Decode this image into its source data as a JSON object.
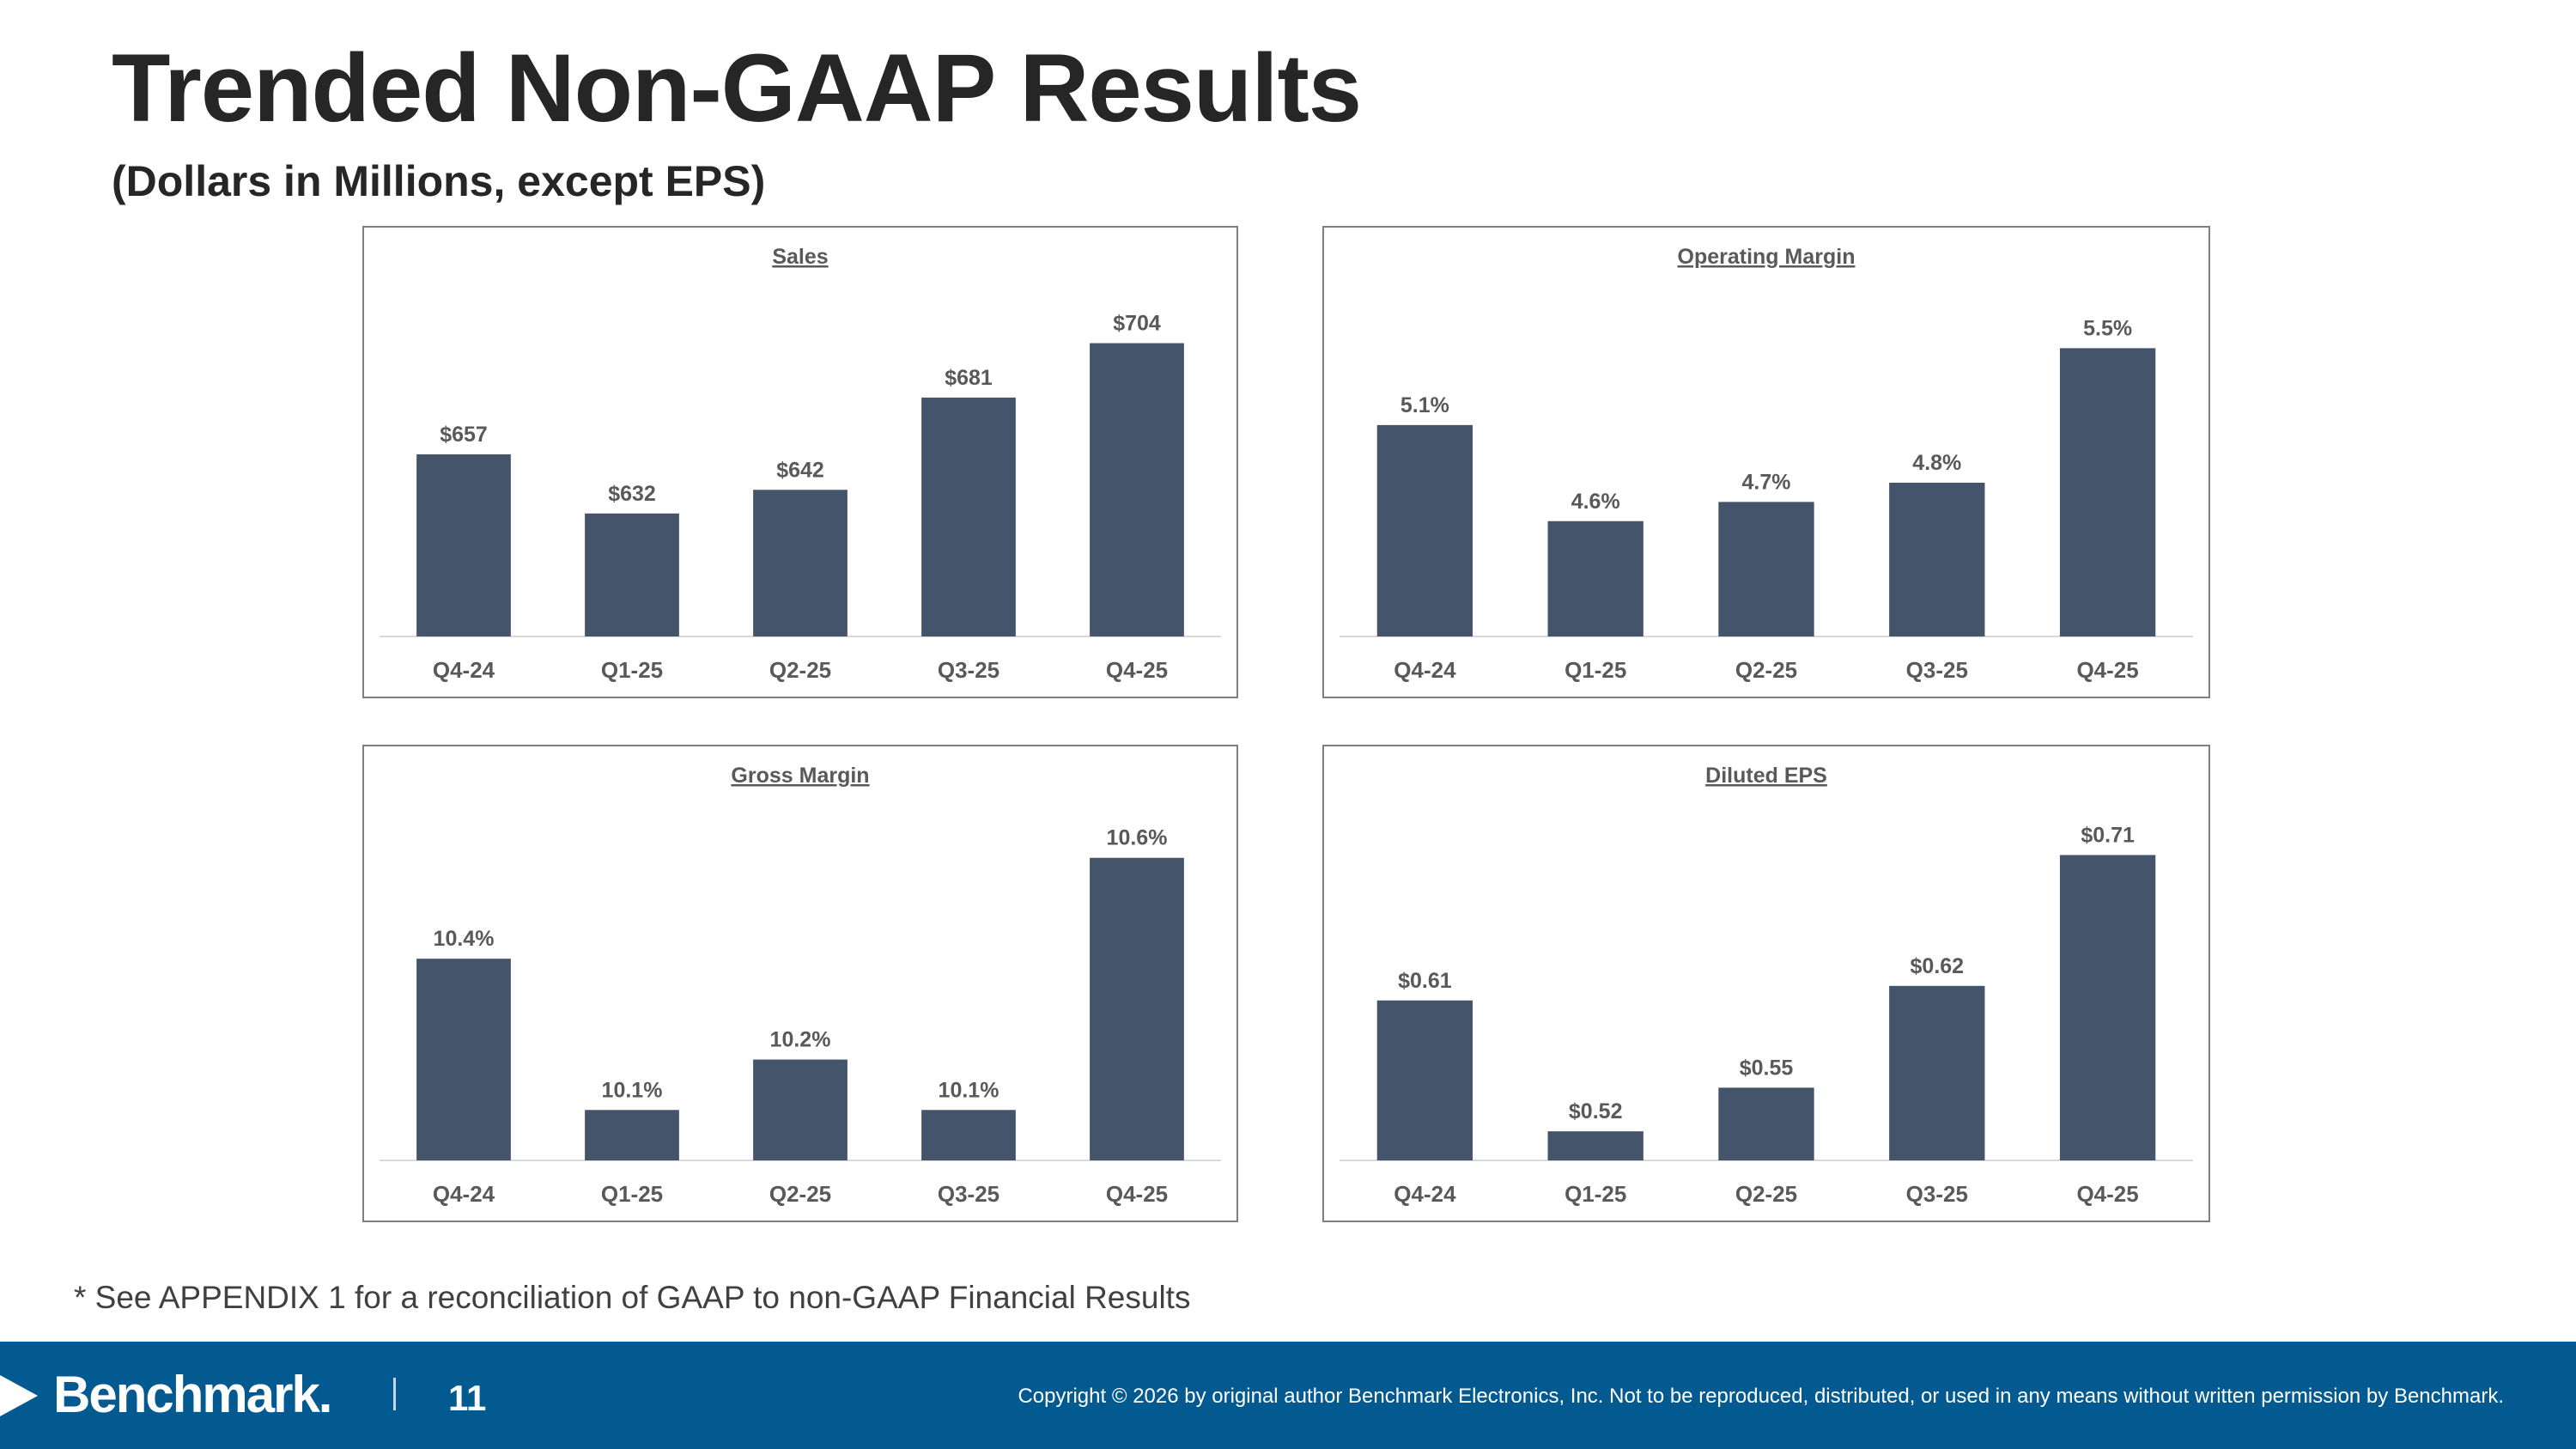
{
  "header": {
    "title": "Trended Non-GAAP Results",
    "subtitle": "(Dollars in Millions, except EPS)"
  },
  "chart_data": [
    {
      "type": "bar",
      "title": "Sales",
      "categories": [
        "Q4-24",
        "Q1-25",
        "Q2-25",
        "Q3-25",
        "Q4-25"
      ],
      "values": [
        657,
        632,
        642,
        681,
        704
      ],
      "labels": [
        "$657",
        "$632",
        "$642",
        "$681",
        "$704"
      ],
      "ylim": [
        580,
        710
      ],
      "xlabel": "",
      "ylabel": "",
      "grid": false
    },
    {
      "type": "bar",
      "title": "Operating Margin",
      "categories": [
        "Q4-24",
        "Q1-25",
        "Q2-25",
        "Q3-25",
        "Q4-25"
      ],
      "values": [
        5.1,
        4.6,
        4.7,
        4.8,
        5.5
      ],
      "labels": [
        "5.1%",
        "4.6%",
        "4.7%",
        "4.8%",
        "5.5%"
      ],
      "ylim": [
        4.0,
        5.6
      ],
      "xlabel": "",
      "ylabel": "",
      "grid": false
    },
    {
      "type": "bar",
      "title": "Gross Margin",
      "categories": [
        "Q4-24",
        "Q1-25",
        "Q2-25",
        "Q3-25",
        "Q4-25"
      ],
      "values": [
        10.4,
        10.1,
        10.2,
        10.1,
        10.6
      ],
      "labels": [
        "10.4%",
        "10.1%",
        "10.2%",
        "10.1%",
        "10.6%"
      ],
      "ylim": [
        10.0,
        10.62
      ],
      "xlabel": "",
      "ylabel": "",
      "grid": false
    },
    {
      "type": "bar",
      "title": "Diluted EPS",
      "categories": [
        "Q4-24",
        "Q1-25",
        "Q2-25",
        "Q3-25",
        "Q4-25"
      ],
      "values": [
        0.61,
        0.52,
        0.55,
        0.62,
        0.71
      ],
      "labels": [
        "$0.61",
        "$0.52",
        "$0.55",
        "$0.62",
        "$0.71"
      ],
      "ylim": [
        0.5,
        0.715
      ],
      "xlabel": "",
      "ylabel": "",
      "grid": false
    }
  ],
  "footnote": "* See APPENDIX 1 for a reconciliation of GAAP to non-GAAP Financial Results",
  "footer": {
    "logo_text": "Benchmark.",
    "page_number": "11",
    "copyright": "Copyright © 2026 by original author Benchmark Electronics, Inc. Not to be reproduced, distributed, or used in any means without written permission by Benchmark."
  },
  "colors": {
    "bar": "#44546a",
    "footer_bg": "#035a91",
    "label": "#595959"
  }
}
